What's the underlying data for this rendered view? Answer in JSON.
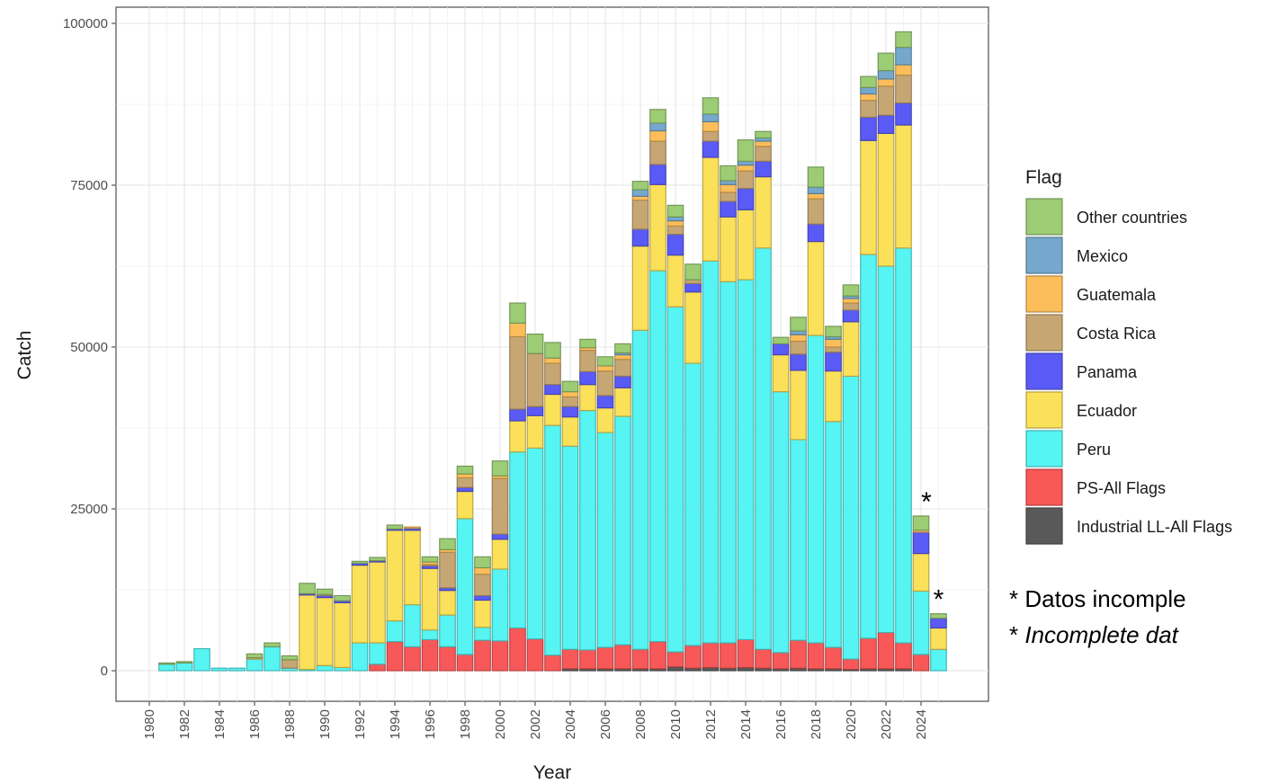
{
  "chart_data": {
    "type": "bar",
    "stacked": true,
    "xlabel": "Year",
    "ylabel": "Catch",
    "ylim": [
      0,
      100000
    ],
    "yticks": [
      0,
      25000,
      50000,
      75000,
      100000
    ],
    "yticklabels": [
      "0",
      "25000",
      "50000",
      "75000",
      "100000"
    ],
    "xticks": [
      1980,
      1982,
      1984,
      1986,
      1988,
      1990,
      1992,
      1994,
      1996,
      1998,
      2000,
      2002,
      2004,
      2006,
      2008,
      2010,
      2012,
      2014,
      2016,
      2018,
      2020,
      2022,
      2024
    ],
    "grid": true,
    "legend": {
      "title": "Flag",
      "position": "right"
    },
    "categories": [
      1981,
      1982,
      1983,
      1984,
      1985,
      1986,
      1987,
      1988,
      1989,
      1990,
      1991,
      1992,
      1993,
      1994,
      1995,
      1996,
      1997,
      1998,
      1999,
      2000,
      2001,
      2002,
      2003,
      2004,
      2005,
      2006,
      2007,
      2008,
      2009,
      2010,
      2011,
      2012,
      2013,
      2014,
      2015,
      2016,
      2017,
      2018,
      2019,
      2020,
      2021,
      2022,
      2023,
      2024,
      2025
    ],
    "series": [
      {
        "name": "Industrial LL-All Flags",
        "color": "#595959",
        "values": [
          0,
          0,
          0,
          0,
          0,
          0,
          0,
          0,
          0,
          0,
          0,
          0,
          0,
          0,
          0,
          0,
          0,
          0,
          0,
          0,
          0,
          0,
          0,
          300,
          300,
          300,
          300,
          300,
          300,
          600,
          400,
          500,
          400,
          500,
          400,
          300,
          400,
          300,
          300,
          200,
          300,
          300,
          300,
          0,
          0
        ]
      },
      {
        "name": "PS-All Flags",
        "color": "#f85858",
        "values": [
          0,
          0,
          0,
          0,
          0,
          0,
          0,
          0,
          0,
          0,
          0,
          0,
          1000,
          4500,
          3700,
          4800,
          3700,
          2500,
          4700,
          4600,
          6600,
          4900,
          2400,
          3000,
          2900,
          3300,
          3700,
          3000,
          4200,
          2300,
          3500,
          3800,
          3900,
          4300,
          2900,
          2500,
          4300,
          4000,
          3300,
          1600,
          4700,
          5600,
          4000,
          2500,
          0
        ]
      },
      {
        "name": "Peru",
        "color": "#56f4f2",
        "values": [
          1000,
          1200,
          3400,
          400,
          400,
          1800,
          3700,
          400,
          200,
          800,
          500,
          4300,
          3300,
          3200,
          6500,
          1500,
          4900,
          21000,
          2000,
          11100,
          27200,
          29500,
          35500,
          31400,
          37000,
          33200,
          35300,
          49300,
          57300,
          53300,
          43600,
          59000,
          55800,
          55600,
          62000,
          40300,
          31000,
          47500,
          34900,
          43700,
          59300,
          56600,
          61000,
          9800,
          3300
        ]
      },
      {
        "name": "Ecuador",
        "color": "#fbe05a",
        "values": [
          0,
          0,
          0,
          0,
          0,
          0,
          0,
          0,
          11500,
          10500,
          10000,
          12000,
          12500,
          14000,
          11500,
          9500,
          3800,
          4200,
          4200,
          4600,
          4800,
          5000,
          4800,
          4500,
          4000,
          3800,
          4400,
          13000,
          13300,
          8000,
          11000,
          16000,
          10000,
          10800,
          11000,
          5700,
          10700,
          14500,
          7800,
          8400,
          17600,
          20500,
          19000,
          5800,
          3300
        ]
      },
      {
        "name": "Panama",
        "color": "#5a5af6",
        "values": [
          0,
          0,
          0,
          0,
          0,
          0,
          0,
          0,
          200,
          300,
          300,
          300,
          200,
          200,
          300,
          400,
          400,
          600,
          700,
          800,
          1800,
          1400,
          1500,
          1600,
          2000,
          1900,
          1800,
          2600,
          3100,
          3200,
          1300,
          2500,
          2400,
          3300,
          2400,
          1700,
          2500,
          2700,
          2900,
          1800,
          3600,
          2800,
          3400,
          3300,
          1500
        ]
      },
      {
        "name": "Costa Rica",
        "color": "#c6a673",
        "values": [
          0,
          0,
          0,
          0,
          0,
          0,
          0,
          1300,
          0,
          200,
          0,
          0,
          0,
          0,
          0,
          200,
          5500,
          1500,
          3300,
          8600,
          11200,
          8200,
          3300,
          1500,
          3300,
          3800,
          2600,
          4500,
          3600,
          1300,
          600,
          1500,
          1400,
          2700,
          2300,
          0,
          2000,
          3900,
          800,
          1100,
          2600,
          4500,
          4300,
          0,
          0
        ]
      },
      {
        "name": "Guatemala",
        "color": "#fbbe5a",
        "values": [
          0,
          0,
          0,
          0,
          0,
          200,
          0,
          0,
          0,
          0,
          0,
          0,
          0,
          0,
          200,
          400,
          400,
          600,
          1000,
          400,
          2100,
          0,
          800,
          800,
          400,
          800,
          700,
          600,
          1600,
          800,
          0,
          1500,
          1200,
          900,
          800,
          0,
          1000,
          800,
          1200,
          700,
          1000,
          1100,
          1600,
          300,
          0
        ]
      },
      {
        "name": "Mexico",
        "color": "#75a8cc",
        "values": [
          0,
          0,
          0,
          0,
          0,
          0,
          0,
          0,
          0,
          0,
          0,
          0,
          0,
          0,
          0,
          0,
          0,
          0,
          0,
          0,
          0,
          0,
          0,
          0,
          0,
          0,
          300,
          1000,
          1200,
          600,
          0,
          1200,
          600,
          600,
          500,
          0,
          600,
          1000,
          400,
          400,
          1000,
          1300,
          2700,
          0,
          0
        ]
      },
      {
        "name": "Other countries",
        "color": "#9ccc74",
        "values": [
          200,
          200,
          0,
          0,
          0,
          600,
          600,
          600,
          1600,
          800,
          800,
          300,
          500,
          600,
          0,
          800,
          1700,
          1200,
          1700,
          2300,
          3100,
          3000,
          2400,
          1600,
          1300,
          1400,
          1400,
          1300,
          2100,
          1800,
          2400,
          2500,
          2300,
          3300,
          1000,
          1000,
          2100,
          3100,
          1600,
          1700,
          1700,
          2700,
          2400,
          2200,
          700
        ]
      }
    ],
    "annotations": [
      {
        "text": "*",
        "x": 2024
      },
      {
        "text": "*",
        "x": 2025
      }
    ]
  },
  "notes": {
    "star": "*",
    "line_es": "Datos incomple",
    "line_en": "Incomplete dat"
  }
}
